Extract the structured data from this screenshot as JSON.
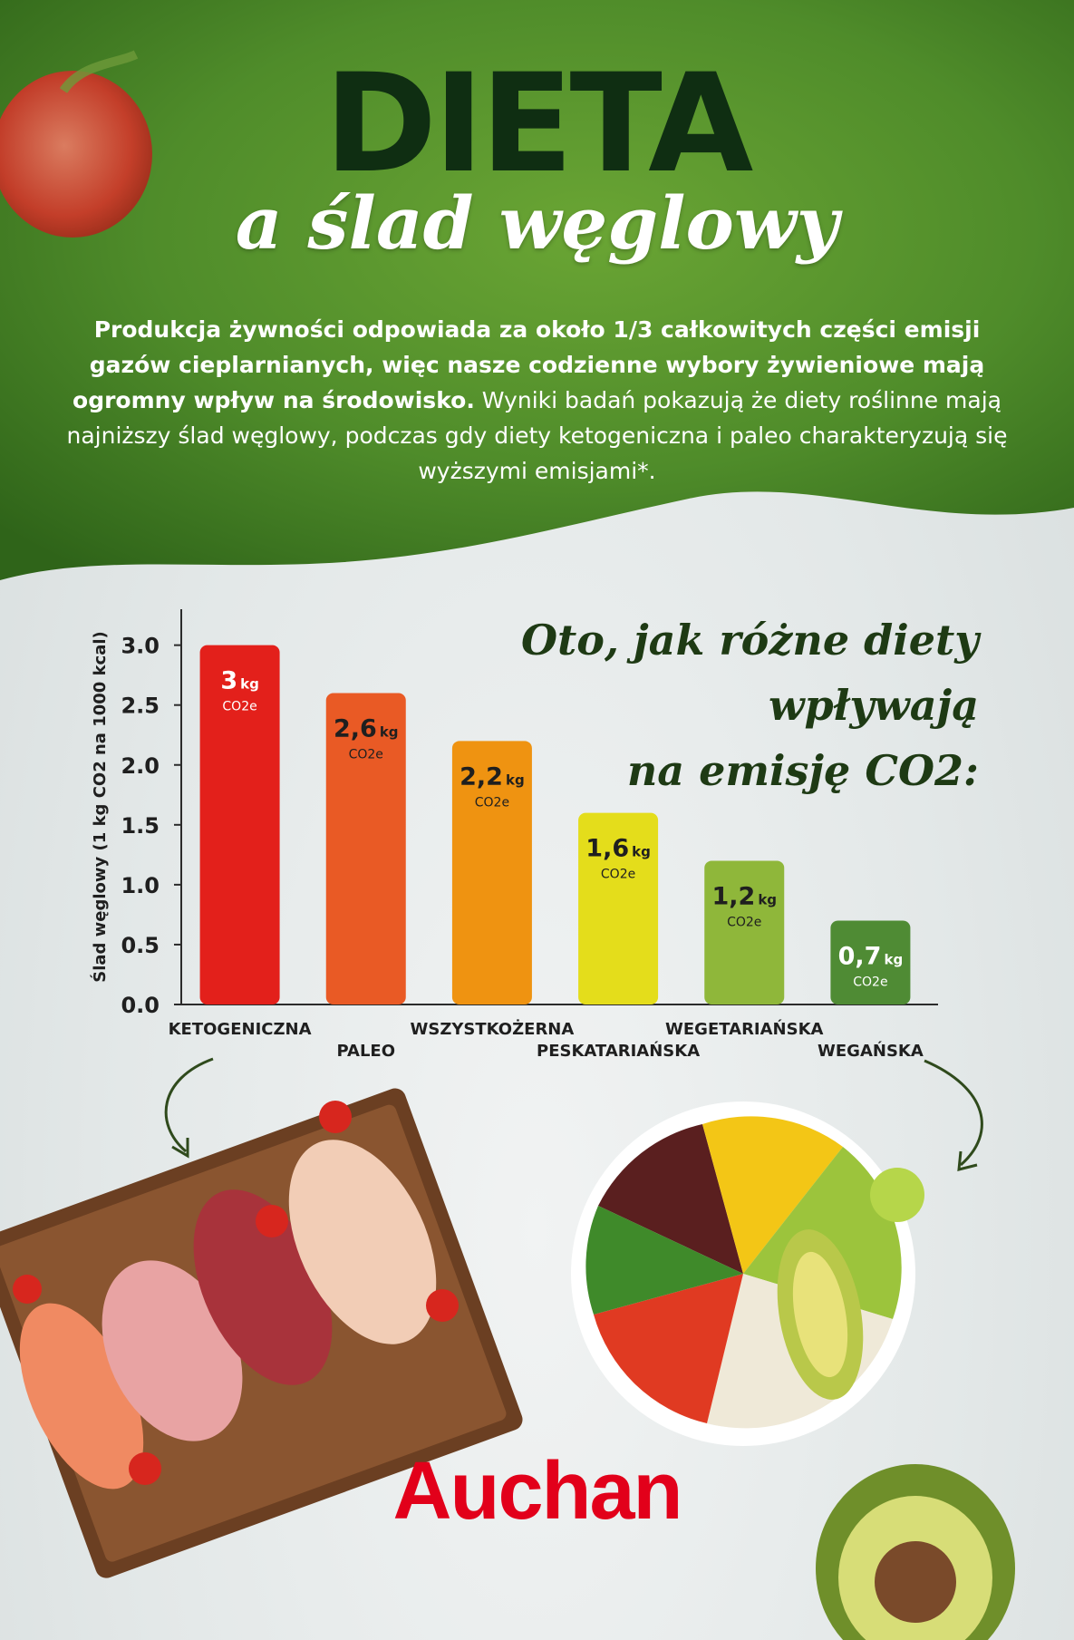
{
  "header": {
    "title": "DIETA",
    "subtitle": "a ślad węglowy",
    "intro_bold": "Produkcja żywności odpowiada za około 1/3 całkowitych części emisji gazów cieplarnianych, więc nasze codzienne wybory żywieniowe mają ogromny wpływ na środowisko.",
    "intro_regular": " Wyniki badań pokazują że diety roślinne mają najniższy ślad węglowy, podczas gdy diety ketogeniczna i paleo charakteryzują się wyższymi emisjami*."
  },
  "chart_heading": {
    "line1": "Oto, jak różne diety wpływają",
    "line2": "na emisję CO2:"
  },
  "chart_data": {
    "type": "bar",
    "title": "Oto, jak różne diety wpływają na emisję CO2:",
    "ylabel": "Ślad węglowy (1 kg CO2 na 1000 kcal)",
    "ylim": [
      0,
      3.3
    ],
    "yticks": [
      "0.0",
      "0.5",
      "1.0",
      "1.5",
      "2.0",
      "2.5",
      "3.0"
    ],
    "ytick_values": [
      0,
      0.5,
      1.0,
      1.5,
      2.0,
      2.5,
      3.0
    ],
    "grid": false,
    "categories": [
      "KETOGENICZNA",
      "PALEO",
      "WSZYSTKOŻERNA",
      "PESKATARIAŃSKA",
      "WEGETARIAŃSKA",
      "WEGAŃSKA"
    ],
    "values": [
      3.0,
      2.6,
      2.2,
      1.6,
      1.2,
      0.7
    ],
    "value_labels": [
      "3",
      "2,6",
      "2,2",
      "1,6",
      "1,2",
      "0,7"
    ],
    "unit_label": "kg",
    "sub_label": "CO2e",
    "colors": [
      "#e3201b",
      "#e95a25",
      "#ef9311",
      "#e4dd1b",
      "#8fb73a",
      "#4f8b34"
    ],
    "label_colors": [
      "#ffffff",
      "#1f1f1f",
      "#1f1f1f",
      "#1f1f1f",
      "#1f1f1f",
      "#ffffff"
    ]
  },
  "photos": {
    "left": "meat-board",
    "right": "vegan-bowl"
  },
  "brand": {
    "name": "Auchan",
    "color": "#e2001a"
  },
  "colors": {
    "header_green": "#4f8c2a",
    "title_dark": "#0f2e12"
  }
}
